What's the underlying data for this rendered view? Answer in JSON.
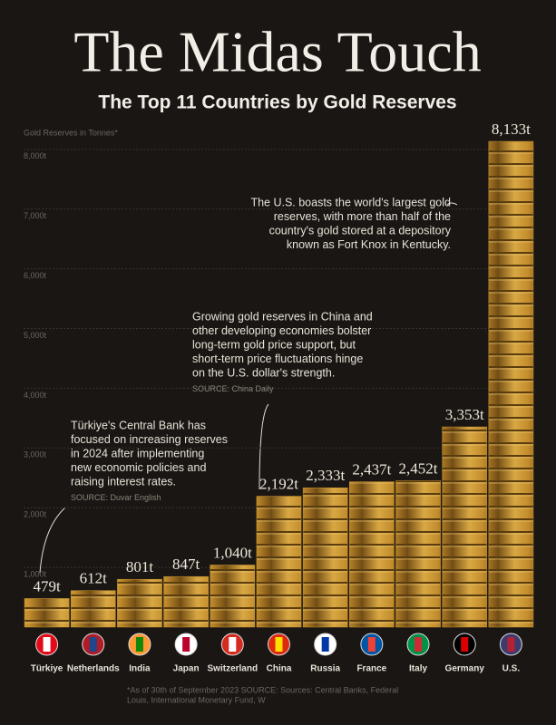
{
  "chart_data": {
    "type": "bar",
    "title": "The Midas Touch",
    "subtitle": "The Top 11 Countries by Gold Reserves",
    "y_label": "Gold Reserves in Tonnes*",
    "categories": [
      "Türkiye",
      "Netherlands",
      "India",
      "Japan",
      "Switzerland",
      "China",
      "Russia",
      "France",
      "Italy",
      "Germany",
      "U.S."
    ],
    "values": [
      479,
      612,
      801,
      847,
      1040,
      2192,
      2333,
      2437,
      2452,
      3353,
      8133
    ],
    "value_labels": [
      "479t",
      "612t",
      "801t",
      "847t",
      "1,040t",
      "2,192t",
      "2,333t",
      "2,437t",
      "2,452t",
      "3,353t",
      "8,133t"
    ],
    "color": "#c9962f",
    "ylim": [
      0,
      8200
    ],
    "yticks": [
      {
        "value": 1000,
        "label": "1,000t"
      },
      {
        "value": 2000,
        "label": "2,000t"
      },
      {
        "value": 3000,
        "label": "3,000t"
      },
      {
        "value": 4000,
        "label": "4,000t"
      },
      {
        "value": 5000,
        "label": "5,000t"
      },
      {
        "value": 6000,
        "label": "6,000t"
      },
      {
        "value": 7000,
        "label": "7,000t"
      },
      {
        "value": 8000,
        "label": "8,000t"
      }
    ],
    "grid": true,
    "annotations": [
      {
        "lines": [
          "The U.S. boasts the world's largest gold",
          "reserves, with more than half of the",
          "country's gold stored at a depository",
          "known as Fort Knox in Kentucky."
        ]
      },
      {
        "lines": [
          "Growing gold reserves in China and",
          "other developing economies bolster",
          "long-term gold price support, but",
          "short-term price fluctuations hinge",
          "on the U.S. dollar's strength."
        ],
        "source": "SOURCE: China Daily"
      },
      {
        "lines": [
          "Türkiye's Central Bank has",
          "focused on increasing reserves",
          "in 2024 after implementing",
          "new economic policies and",
          "raising interest rates."
        ],
        "source": "SOURCE: Duvar English"
      }
    ],
    "footnote": [
      "*As of 30th of September 2023 SOURCE: Sources: Central Banks, Federal",
      "Louis, International Monetary Fund, W"
    ]
  }
}
